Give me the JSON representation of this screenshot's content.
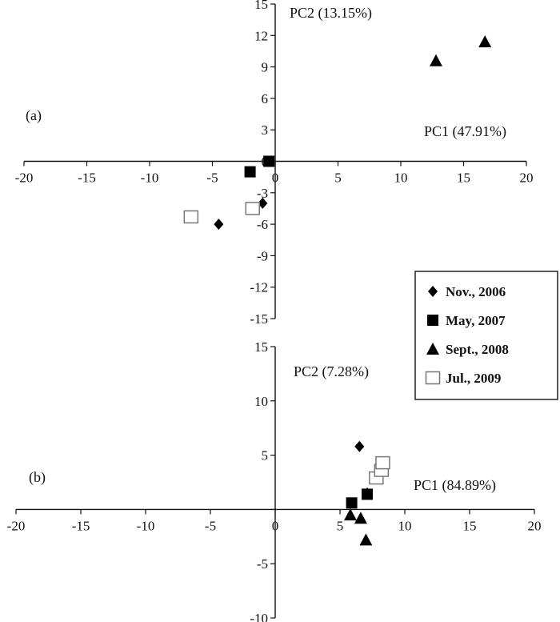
{
  "chart_data": [
    {
      "type": "scatter",
      "panel_label": "(a)",
      "xlabel": "PC1 (47.91%)",
      "ylabel": "PC2 (13.15%)",
      "xlim": [
        -20,
        20
      ],
      "ylim": [
        -15,
        15
      ],
      "xticks": [
        -20,
        -15,
        -10,
        -5,
        0,
        5,
        10,
        15,
        20
      ],
      "yticks": [
        -15,
        -12,
        -9,
        -6,
        -3,
        0,
        3,
        6,
        9,
        12,
        15
      ],
      "series": [
        {
          "name": "Nov., 2006",
          "marker": "diamond",
          "points": [
            [
              -4.5,
              -6.0
            ],
            [
              -1.0,
              -4.0
            ]
          ]
        },
        {
          "name": "May, 2007",
          "marker": "square",
          "points": [
            [
              -2.0,
              -1.0
            ],
            [
              -0.5,
              0.0
            ]
          ]
        },
        {
          "name": "Sept., 2008",
          "marker": "triangle",
          "points": [
            [
              12.8,
              9.6
            ],
            [
              16.7,
              11.4
            ]
          ]
        },
        {
          "name": "Jul., 2009",
          "marker": "open-square",
          "points": [
            [
              -6.7,
              -5.3
            ],
            [
              -1.8,
              -4.5
            ]
          ]
        }
      ]
    },
    {
      "type": "scatter",
      "panel_label": "(b)",
      "xlabel": "PC1 (84.89%)",
      "ylabel": "PC2 (7.28%)",
      "xlim": [
        -20,
        20
      ],
      "ylim": [
        -10,
        15
      ],
      "xticks": [
        -20,
        -15,
        -10,
        -5,
        0,
        5,
        10,
        15,
        20
      ],
      "yticks": [
        -10,
        -5,
        0,
        5,
        10,
        15
      ],
      "series": [
        {
          "name": "Nov., 2006",
          "marker": "diamond",
          "points": [
            [
              6.5,
              5.8
            ],
            [
              7.1,
              1.5
            ]
          ]
        },
        {
          "name": "May, 2007",
          "marker": "square",
          "points": [
            [
              5.9,
              0.6
            ],
            [
              7.1,
              1.4
            ]
          ]
        },
        {
          "name": "Sept., 2008",
          "marker": "triangle",
          "points": [
            [
              5.8,
              -0.5
            ],
            [
              6.6,
              -0.8
            ],
            [
              7.0,
              -2.8
            ]
          ]
        },
        {
          "name": "Jul., 2009",
          "marker": "open-square",
          "points": [
            [
              7.8,
              2.9
            ],
            [
              8.2,
              3.6
            ],
            [
              8.3,
              4.3
            ]
          ]
        }
      ]
    }
  ],
  "legend": {
    "placement": "right",
    "entries": [
      {
        "label": "Nov., 2006",
        "marker": "diamond"
      },
      {
        "label": "May, 2007",
        "marker": "square"
      },
      {
        "label": "Sept., 2008",
        "marker": "triangle"
      },
      {
        "label": "Jul., 2009",
        "marker": "open-square"
      }
    ]
  }
}
